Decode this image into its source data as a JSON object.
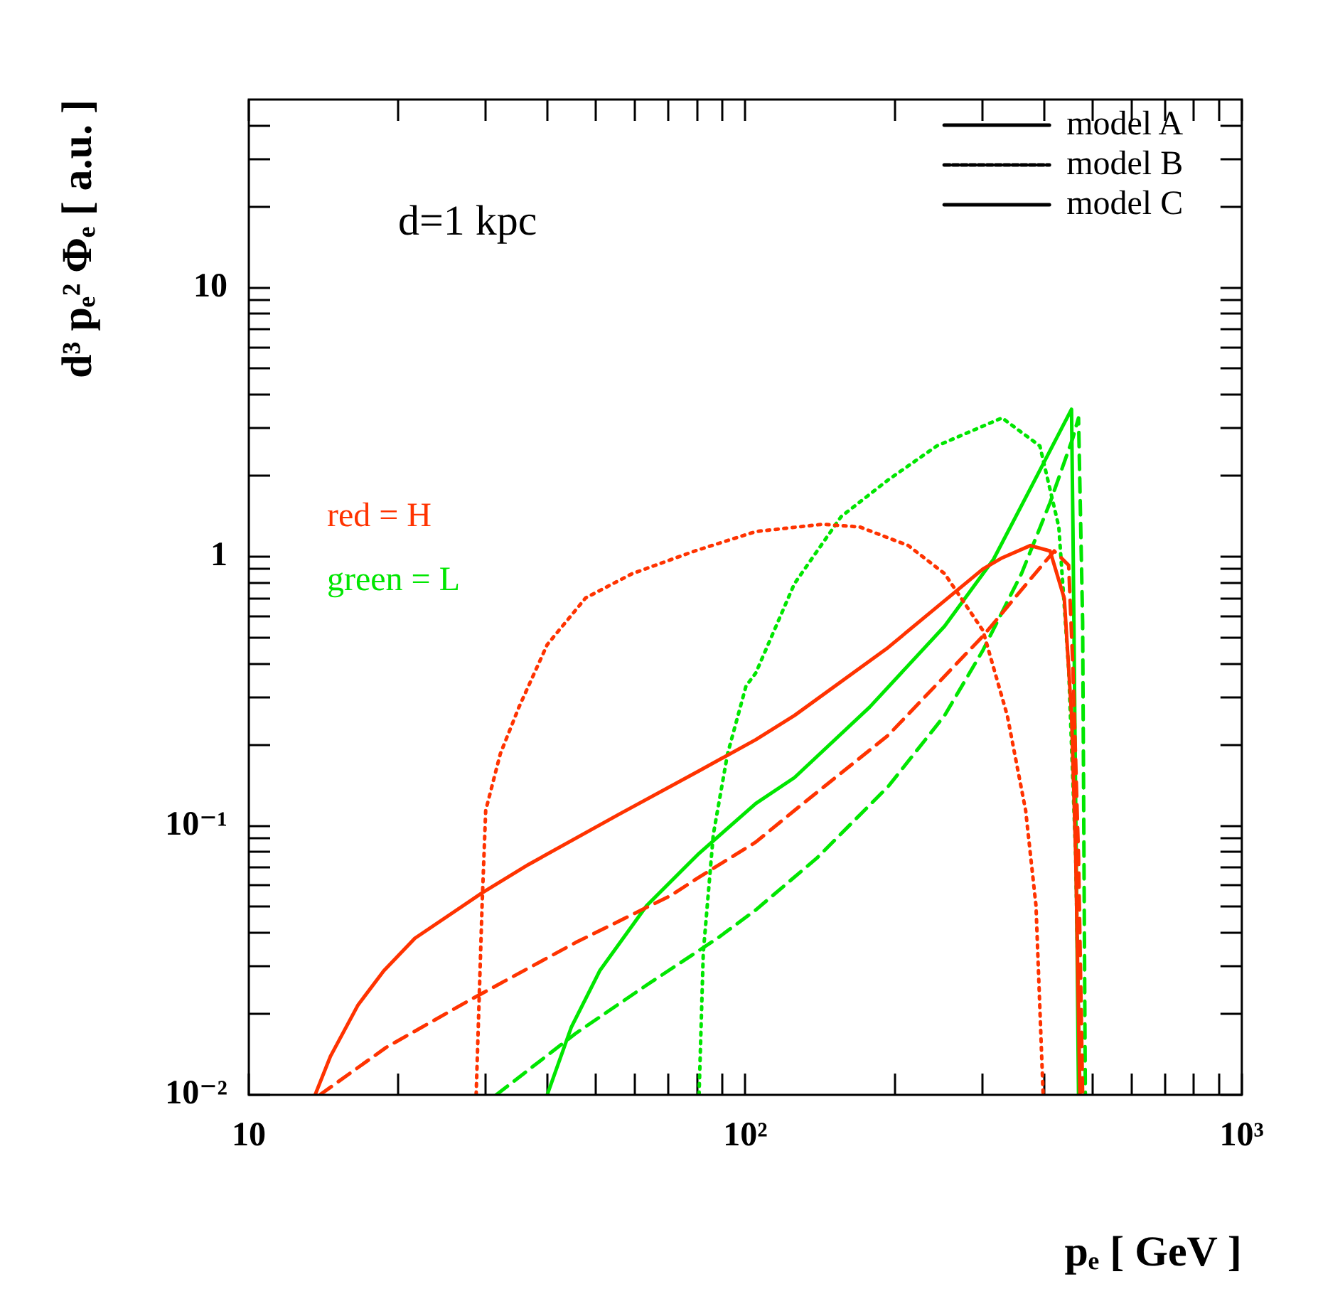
{
  "chart_data": {
    "type": "line",
    "xlabel": "pₑ [ GeV ]",
    "ylabel": "d³ pₑ² Φₑ [ a.u. ]",
    "annotations": [
      "d=1 kpc",
      "red = H",
      "green = L"
    ],
    "log": "xy",
    "grid": false,
    "legend": "top right",
    "marker": "none",
    "xlim": [
      10,
      1000
    ],
    "xticks": [
      10,
      {
        "value": 20,
        "label": null
      },
      {
        "value": 30,
        "label": null
      },
      {
        "value": 40,
        "label": null
      },
      {
        "value": 50,
        "label": null
      },
      {
        "value": 60,
        "label": null
      },
      {
        "value": 70,
        "label": null
      },
      {
        "value": 80,
        "label": null
      },
      {
        "value": 90,
        "label": null
      },
      {
        "value": 100,
        "label": "10²"
      },
      {
        "value": 200,
        "label": null
      },
      {
        "value": 300,
        "label": null
      },
      {
        "value": 400,
        "label": null
      },
      {
        "value": 500,
        "label": null
      },
      {
        "value": 600,
        "label": null
      },
      {
        "value": 700,
        "label": null
      },
      {
        "value": 800,
        "label": null
      },
      {
        "value": 900,
        "label": null
      },
      {
        "value": 1000,
        "label": "10³"
      }
    ],
    "ylim": [
      0.01,
      50
    ],
    "yticks": [
      {
        "value": 0.01,
        "label": "10⁻²"
      },
      {
        "value": 0.02,
        "label": null
      },
      {
        "value": 0.03,
        "label": null
      },
      {
        "value": 0.04,
        "label": null
      },
      {
        "value": 0.05,
        "label": null
      },
      {
        "value": 0.06,
        "label": null
      },
      {
        "value": 0.07,
        "label": null
      },
      {
        "value": 0.08,
        "label": null
      },
      {
        "value": 0.09,
        "label": null
      },
      {
        "value": 0.1,
        "label": "10⁻¹"
      },
      {
        "value": 0.2,
        "label": null
      },
      {
        "value": 0.3,
        "label": null
      },
      {
        "value": 0.4,
        "label": null
      },
      {
        "value": 0.5,
        "label": null
      },
      {
        "value": 0.6,
        "label": null
      },
      {
        "value": 0.7,
        "label": null
      },
      {
        "value": 0.8,
        "label": null
      },
      {
        "value": 0.9,
        "label": null
      },
      1,
      {
        "value": 2,
        "label": null
      },
      {
        "value": 3,
        "label": null
      },
      {
        "value": 4,
        "label": null
      },
      {
        "value": 5,
        "label": null
      },
      {
        "value": 6,
        "label": null
      },
      {
        "value": 7,
        "label": null
      },
      {
        "value": 8,
        "label": null
      },
      {
        "value": 9,
        "label": null
      },
      10,
      {
        "value": 20,
        "label": null
      },
      {
        "value": 30,
        "label": null
      },
      {
        "value": 40,
        "label": null
      }
    ],
    "series": [
      {
        "color": "#ff3300",
        "line_style": "solid",
        "x": [
          13.6,
          14.6,
          16.6,
          18.7,
          21.6,
          29.5,
          36.6,
          55.5,
          80.7,
          105,
          125.6,
          194,
          301,
          329,
          375,
          411,
          439,
          454,
          463,
          472
        ],
        "values": [
          0.01,
          0.0139,
          0.0216,
          0.0289,
          0.0382,
          0.0563,
          0.0718,
          0.11,
          0.16,
          0.209,
          0.257,
          0.46,
          0.9,
          0.99,
          1.1,
          1.05,
          0.7,
          0.26,
          0.076,
          0.01
        ]
      },
      {
        "color": "#ff3300",
        "line_style": "dotted",
        "x": [
          28.7,
          29.5,
          30,
          32.1,
          35,
          39.9,
          47.7,
          59.2,
          79.1,
          105,
          143,
          170,
          213,
          252,
          301,
          337,
          367,
          385,
          398
        ],
        "values": [
          0.01,
          0.0505,
          0.114,
          0.185,
          0.276,
          0.471,
          0.703,
          0.865,
          1.05,
          1.24,
          1.32,
          1.29,
          1.1,
          0.865,
          0.532,
          0.257,
          0.114,
          0.0505,
          0.01
        ]
      },
      {
        "color": "#ff3300",
        "line_style": "dashed",
        "x": [
          13.9,
          18.9,
          28.1,
          45.5,
          70.7,
          80.7,
          105,
          125.6,
          194,
          301,
          375,
          419,
          448,
          457,
          469,
          478
        ],
        "values": [
          0.01,
          0.015,
          0.0227,
          0.0368,
          0.055,
          0.0644,
          0.087,
          0.114,
          0.217,
          0.507,
          0.824,
          1.05,
          0.93,
          0.383,
          0.076,
          0.01
        ]
      },
      {
        "color": "#00e600",
        "line_style": "solid",
        "x": [
          39.9,
          44.6,
          50.9,
          63.3,
          77.1,
          80.7,
          105,
          125.6,
          178,
          252,
          316,
          375,
          454,
          457,
          469
        ],
        "values": [
          0.01,
          0.0178,
          0.0289,
          0.0505,
          0.0727,
          0.079,
          0.121,
          0.151,
          0.276,
          0.552,
          0.976,
          1.79,
          3.53,
          1.29,
          0.01
        ]
      },
      {
        "color": "#00e600",
        "line_style": "dotted",
        "x": [
          80.7,
          82.3,
          86.2,
          92.1,
          100.3,
          105,
          125.6,
          156,
          194,
          243,
          329,
          392,
          428,
          448,
          463,
          472
        ],
        "values": [
          0.01,
          0.0338,
          0.0927,
          0.185,
          0.33,
          0.37,
          0.794,
          1.41,
          1.93,
          2.58,
          3.28,
          2.58,
          1.29,
          0.383,
          0.076,
          0.01
        ]
      },
      {
        "color": "#00e600",
        "line_style": "dashed",
        "x": [
          31.5,
          45.5,
          63.3,
          87.9,
          105,
          139.5,
          194,
          252,
          301,
          360,
          411,
          457,
          469,
          478,
          484
        ],
        "values": [
          0.01,
          0.0169,
          0.0256,
          0.0382,
          0.0487,
          0.076,
          0.14,
          0.257,
          0.449,
          0.865,
          1.59,
          2.77,
          3.28,
          0.572,
          0.01
        ]
      },
      {
        "name": "model A",
        "color": "#000000",
        "line_style": "solid"
      },
      {
        "name": "model B",
        "color": "#000000",
        "line_style": "dotted"
      },
      {
        "name": "model C",
        "color": "#000000",
        "line_style": "dashed"
      }
    ]
  }
}
